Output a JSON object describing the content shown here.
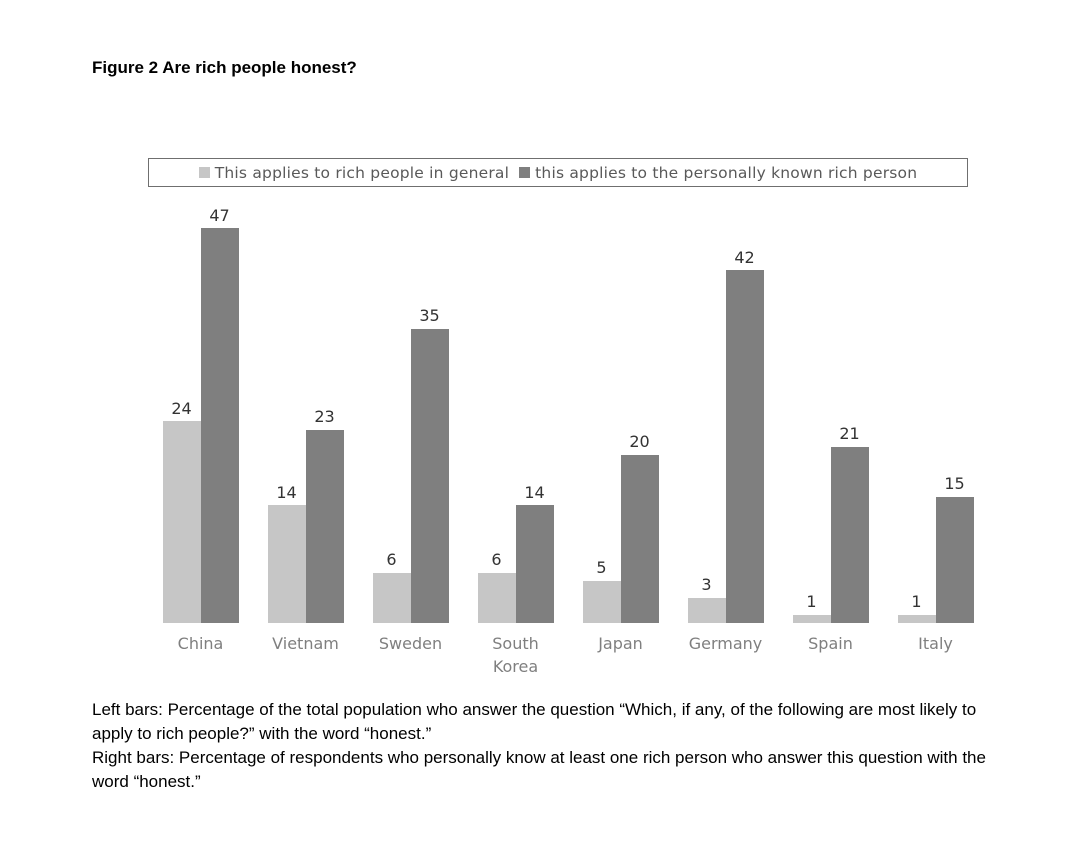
{
  "chart_data": {
    "type": "bar",
    "title": "Figure 2 Are rich people honest?",
    "categories": [
      "China",
      "Vietnam",
      "Sweden",
      "South Korea",
      "Japan",
      "Germany",
      "Spain",
      "Italy"
    ],
    "series": [
      {
        "name": "This applies to rich people in general",
        "key": "general",
        "color": "#c6c6c6",
        "values": [
          24,
          14,
          6,
          6,
          5,
          3,
          1,
          1
        ]
      },
      {
        "name": "this applies to the personally known rich person",
        "key": "personally-known",
        "color": "#7f7f7f",
        "values": [
          47,
          23,
          35,
          14,
          20,
          42,
          21,
          15
        ]
      }
    ],
    "xlabel": "",
    "ylabel": "",
    "ylim": [
      0,
      47
    ],
    "grid": false,
    "legend_position": "top",
    "value_labels": true
  },
  "caption": {
    "left_bars": "Left bars: Percentage of the total population who answer the question “Which, if any, of the following are most likely to apply to rich people?” with the word “honest.”",
    "right_bars": "Right bars: Percentage of respondents who personally know at least one rich person who answer this question with the word “honest.”"
  }
}
